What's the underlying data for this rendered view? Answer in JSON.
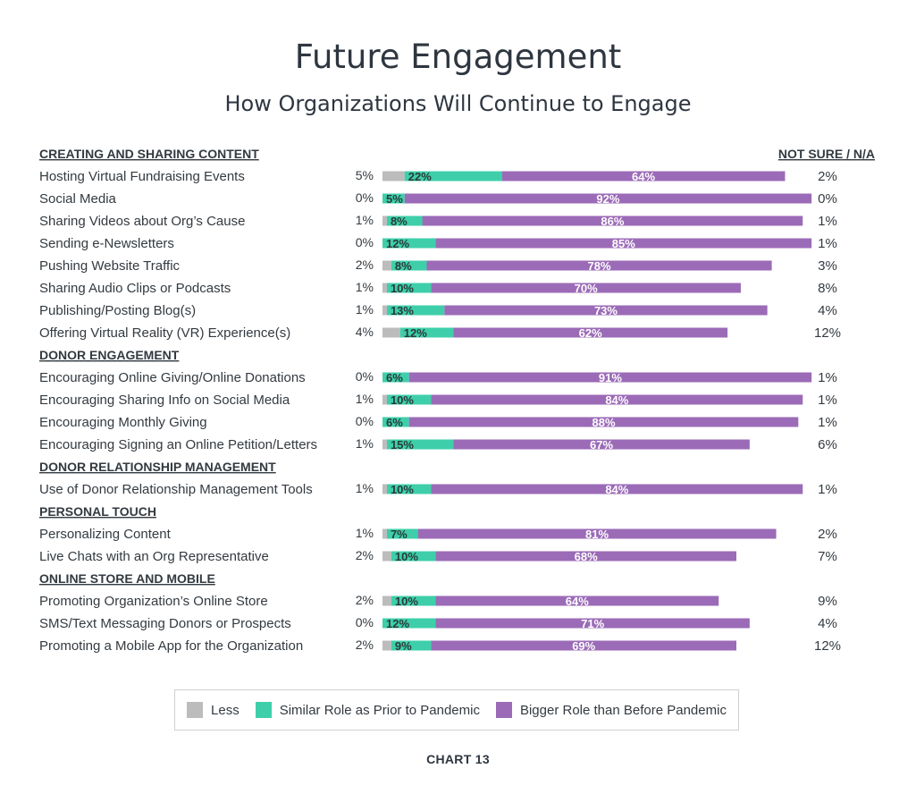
{
  "title": "Future Engagement",
  "subtitle": "How Organizations Will Continue to Engage",
  "footer": "CHART 13",
  "chart_data": {
    "type": "bar",
    "orientation": "horizontal",
    "stacked": true,
    "na_header": "NOT SURE / N/A",
    "colors": {
      "less": "#bcbcbc",
      "similar": "#3ecfaa",
      "bigger": "#9b6bb7"
    },
    "legend": [
      {
        "key": "less",
        "label": "Less"
      },
      {
        "key": "similar",
        "label": "Similar Role as Prior to Pandemic"
      },
      {
        "key": "bigger",
        "label": "Bigger Role than Before Pandemic"
      }
    ],
    "groups": [
      {
        "name": "CREATING AND SHARING CONTENT",
        "rows": [
          {
            "label": "Hosting Virtual Fundraising Events",
            "less": 5,
            "similar": 22,
            "bigger": 64,
            "na": 2
          },
          {
            "label": "Social Media",
            "less": 0,
            "similar": 5,
            "bigger": 92,
            "na": 0
          },
          {
            "label": "Sharing Videos about Org’s Cause",
            "less": 1,
            "similar": 8,
            "bigger": 86,
            "na": 1
          },
          {
            "label": "Sending e-Newsletters",
            "less": 0,
            "similar": 12,
            "bigger": 85,
            "na": 1
          },
          {
            "label": "Pushing Website Traffic",
            "less": 2,
            "similar": 8,
            "bigger": 78,
            "na": 3
          },
          {
            "label": "Sharing Audio Clips or Podcasts",
            "less": 1,
            "similar": 10,
            "bigger": 70,
            "na": 8
          },
          {
            "label": "Publishing/Posting Blog(s)",
            "less": 1,
            "similar": 13,
            "bigger": 73,
            "na": 4
          },
          {
            "label": "Offering Virtual Reality (VR) Experience(s)",
            "less": 4,
            "similar": 12,
            "bigger": 62,
            "na": 12
          }
        ]
      },
      {
        "name": "DONOR ENGAGEMENT",
        "rows": [
          {
            "label": "Encouraging Online Giving/Online Donations",
            "less": 0,
            "similar": 6,
            "bigger": 91,
            "na": 1
          },
          {
            "label": "Encouraging Sharing Info on Social Media",
            "less": 1,
            "similar": 10,
            "bigger": 84,
            "na": 1
          },
          {
            "label": "Encouraging Monthly Giving",
            "less": 0,
            "similar": 6,
            "bigger": 88,
            "na": 1
          },
          {
            "label": "Encouraging Signing an Online Petition/Letters",
            "less": 1,
            "similar": 15,
            "bigger": 67,
            "na": 6
          }
        ]
      },
      {
        "name": "DONOR RELATIONSHIP MANAGEMENT",
        "rows": [
          {
            "label": "Use of Donor Relationship Management Tools",
            "less": 1,
            "similar": 10,
            "bigger": 84,
            "na": 1
          }
        ]
      },
      {
        "name": "PERSONAL TOUCH",
        "rows": [
          {
            "label": "Personalizing Content",
            "less": 1,
            "similar": 7,
            "bigger": 81,
            "na": 2
          },
          {
            "label": "Live Chats with an Org Representative",
            "less": 2,
            "similar": 10,
            "bigger": 68,
            "na": 7
          }
        ]
      },
      {
        "name": "ONLINE STORE AND MOBILE",
        "rows": [
          {
            "label": "Promoting Organization’s Online Store",
            "less": 2,
            "similar": 10,
            "bigger": 64,
            "na": 9
          },
          {
            "label": "SMS/Text Messaging Donors or Prospects",
            "less": 0,
            "similar": 12,
            "bigger": 71,
            "na": 4
          },
          {
            "label": "Promoting a Mobile App for the Organization",
            "less": 2,
            "similar": 9,
            "bigger": 69,
            "na": 12
          }
        ]
      }
    ]
  }
}
